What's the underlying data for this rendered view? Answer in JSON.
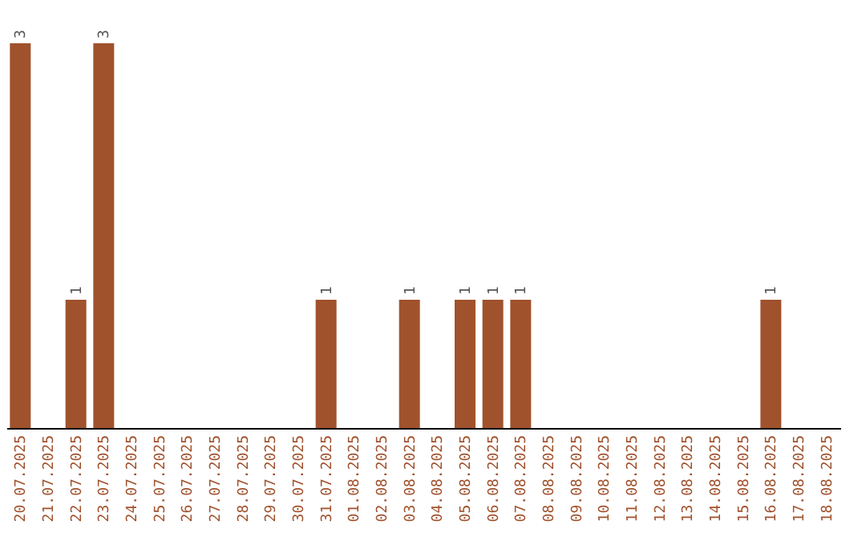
{
  "chart_data": {
    "type": "bar",
    "categories": [
      "20.07.2025",
      "21.07.2025",
      "22.07.2025",
      "23.07.2025",
      "24.07.2025",
      "25.07.2025",
      "26.07.2025",
      "27.07.2025",
      "28.07.2025",
      "29.07.2025",
      "30.07.2025",
      "31.07.2025",
      "01.08.2025",
      "02.08.2025",
      "03.08.2025",
      "04.08.2025",
      "05.08.2025",
      "06.08.2025",
      "07.08.2025",
      "08.08.2025",
      "09.08.2025",
      "10.08.2025",
      "11.08.2025",
      "12.08.2025",
      "13.08.2025",
      "14.08.2025",
      "15.08.2025",
      "16.08.2025",
      "17.08.2025",
      "18.08.2025"
    ],
    "values": [
      3,
      0,
      1,
      3,
      0,
      0,
      0,
      0,
      0,
      0,
      0,
      1,
      0,
      0,
      1,
      0,
      1,
      1,
      1,
      0,
      0,
      0,
      0,
      0,
      0,
      0,
      0,
      1,
      0,
      0
    ],
    "value_labels": [
      "3",
      null,
      "1",
      "3",
      null,
      null,
      null,
      null,
      null,
      null,
      null,
      "1",
      null,
      null,
      "1",
      null,
      "1",
      "1",
      "1",
      null,
      null,
      null,
      null,
      null,
      null,
      null,
      null,
      "1",
      null,
      null
    ],
    "color": "#a0522d",
    "grid": false
  }
}
